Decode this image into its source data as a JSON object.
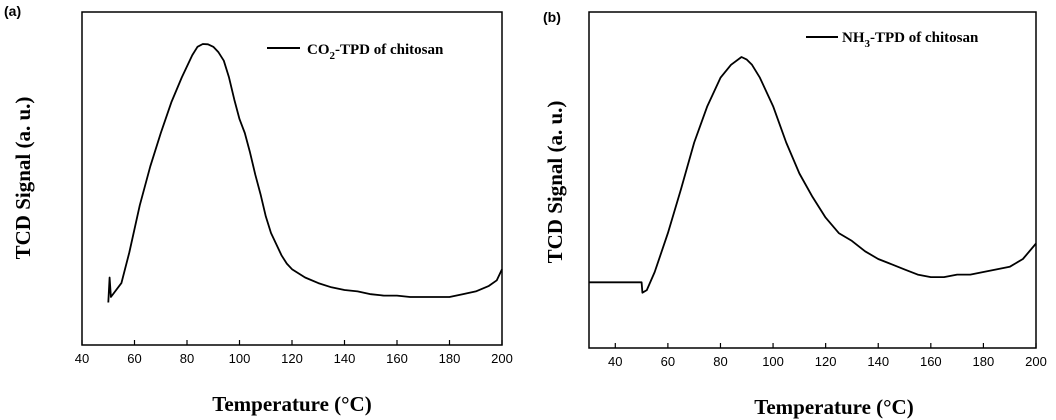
{
  "chart_data": [
    {
      "type": "line",
      "panel_label": "(a)",
      "xlabel": "Temperature (°C)",
      "ylabel": "TCD Signal (a. u.)",
      "xlim": [
        40,
        200
      ],
      "ylim": [
        0,
        1
      ],
      "x_ticks": [
        40,
        60,
        80,
        100,
        120,
        140,
        160,
        180,
        200
      ],
      "y_ticks_labeled": false,
      "grid": false,
      "legend_position": "top-right",
      "series": [
        {
          "name": "CO2-TPD of chitosan",
          "legend_main": "CO",
          "legend_sub": "2",
          "legend_tail": "-TPD of chitosan",
          "color": "#000000",
          "x": [
            50,
            50.5,
            51,
            55,
            58,
            62,
            66,
            70,
            74,
            78,
            82,
            84,
            86,
            88,
            90,
            92,
            94,
            96,
            98,
            100,
            102,
            104,
            106,
            108,
            110,
            112,
            114,
            116,
            118,
            120,
            125,
            130,
            135,
            140,
            145,
            150,
            155,
            160,
            165,
            170,
            175,
            180,
            185,
            190,
            195,
            198,
            200
          ],
          "y": [
            0.07,
            0.16,
            0.09,
            0.14,
            0.25,
            0.42,
            0.56,
            0.68,
            0.79,
            0.88,
            0.96,
            0.99,
            1.0,
            0.999,
            0.99,
            0.97,
            0.94,
            0.88,
            0.8,
            0.73,
            0.68,
            0.61,
            0.53,
            0.46,
            0.38,
            0.32,
            0.28,
            0.24,
            0.21,
            0.19,
            0.16,
            0.14,
            0.125,
            0.115,
            0.11,
            0.1,
            0.095,
            0.095,
            0.09,
            0.09,
            0.09,
            0.09,
            0.1,
            0.11,
            0.13,
            0.15,
            0.19
          ]
        }
      ]
    },
    {
      "type": "line",
      "panel_label": "(b)",
      "xlabel": "Temperature (°C)",
      "ylabel": "TCD Signal (a. u.)",
      "xlim": [
        30,
        200
      ],
      "ylim": [
        0,
        1
      ],
      "x_ticks": [
        40,
        60,
        80,
        100,
        120,
        140,
        160,
        180,
        200
      ],
      "y_ticks_labeled": false,
      "grid": false,
      "legend_position": "top-right",
      "series": [
        {
          "name": "NH3-TPD of chitosan",
          "legend_main": "NH",
          "legend_sub": "3",
          "legend_tail": "-TPD of chitosan",
          "color": "#000000",
          "x": [
            30,
            40,
            50,
            50.3,
            52,
            55,
            60,
            65,
            70,
            75,
            80,
            84,
            88,
            90,
            92,
            95,
            100,
            105,
            110,
            115,
            120,
            125,
            130,
            135,
            140,
            145,
            150,
            155,
            160,
            165,
            170,
            175,
            180,
            185,
            190,
            195,
            200
          ],
          "y": [
            0.13,
            0.13,
            0.13,
            0.09,
            0.1,
            0.17,
            0.32,
            0.49,
            0.67,
            0.81,
            0.92,
            0.97,
            1.0,
            0.99,
            0.97,
            0.92,
            0.81,
            0.67,
            0.55,
            0.46,
            0.38,
            0.32,
            0.29,
            0.25,
            0.22,
            0.2,
            0.18,
            0.16,
            0.15,
            0.15,
            0.16,
            0.16,
            0.17,
            0.18,
            0.19,
            0.22,
            0.28
          ]
        }
      ]
    }
  ]
}
